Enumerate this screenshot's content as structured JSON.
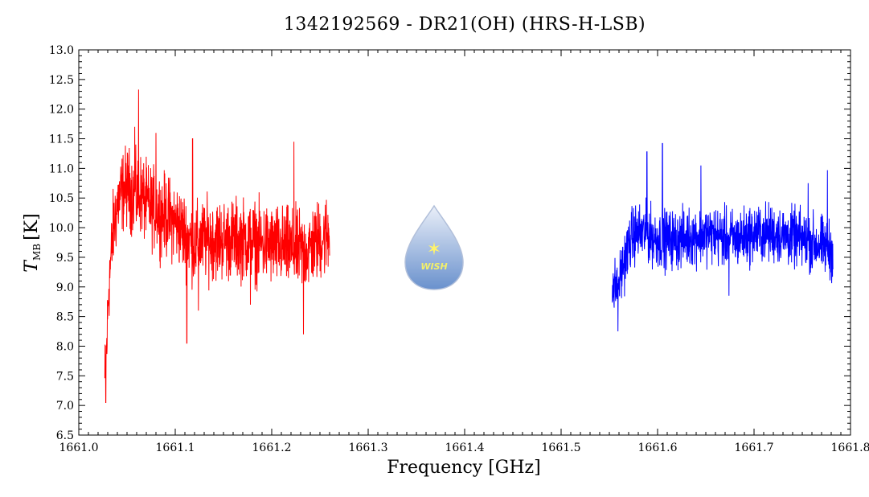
{
  "chart_data": {
    "type": "line",
    "title": "1342192569 - DR21(OH) (HRS-H-LSB)",
    "xlabel": "Frequency [GHz]",
    "ylabel_main": "T",
    "ylabel_sub": "MB",
    "ylabel_unit": "[K]",
    "xlim": [
      1661.0,
      1661.8
    ],
    "ylim": [
      6.5,
      13.0
    ],
    "xticks": [
      "1661.0",
      "1661.1",
      "1661.2",
      "1661.3",
      "1661.4",
      "1661.5",
      "1661.6",
      "1661.7",
      "1661.8"
    ],
    "yticks": [
      "6.5",
      "7.0",
      "7.5",
      "8.0",
      "8.5",
      "9.0",
      "9.5",
      "10.0",
      "10.5",
      "11.0",
      "11.5",
      "12.0",
      "12.5",
      "13.0"
    ],
    "series": [
      {
        "color": "#ff0000",
        "x_start": 1661.027,
        "x_end": 1661.26,
        "x": [
          1661.027,
          1661.029,
          1661.031,
          1661.033,
          1661.036,
          1661.04,
          1661.045,
          1661.05,
          1661.055,
          1661.06,
          1661.063,
          1661.07,
          1661.08,
          1661.09,
          1661.1,
          1661.11,
          1661.12,
          1661.13,
          1661.15,
          1661.17,
          1661.2,
          1661.23,
          1661.235,
          1661.25,
          1661.26
        ],
        "y": [
          7.4,
          8.0,
          9.0,
          9.4,
          10.0,
          10.4,
          10.6,
          10.7,
          10.6,
          10.5,
          10.6,
          10.4,
          10.3,
          10.2,
          10.1,
          9.9,
          9.7,
          9.8,
          9.8,
          9.8,
          9.7,
          9.6,
          9.6,
          9.8,
          9.9
        ],
        "noise_amplitude": 0.55,
        "spikes": [
          {
            "x": 1661.028,
            "y": 7.05
          },
          {
            "x": 1661.062,
            "y": 12.33
          },
          {
            "x": 1661.058,
            "y": 11.7
          },
          {
            "x": 1661.08,
            "y": 11.6
          },
          {
            "x": 1661.112,
            "y": 8.05
          },
          {
            "x": 1661.124,
            "y": 8.6
          },
          {
            "x": 1661.233,
            "y": 8.2
          },
          {
            "x": 1661.178,
            "y": 8.7
          },
          {
            "x": 1661.223,
            "y": 11.45
          },
          {
            "x": 1661.118,
            "y": 11.5
          }
        ]
      },
      {
        "color": "#0000ff",
        "x_start": 1661.553,
        "x_end": 1661.782,
        "x": [
          1661.553,
          1661.556,
          1661.56,
          1661.565,
          1661.57,
          1661.575,
          1661.58,
          1661.59,
          1661.6,
          1661.62,
          1661.65,
          1661.68,
          1661.7,
          1661.72,
          1661.75,
          1661.77,
          1661.782
        ],
        "y": [
          9.1,
          9.0,
          9.1,
          9.4,
          9.7,
          9.9,
          9.9,
          9.9,
          9.8,
          9.8,
          9.9,
          9.8,
          9.9,
          9.9,
          9.8,
          9.7,
          9.6
        ],
        "noise_amplitude": 0.4,
        "spikes": [
          {
            "x": 1661.559,
            "y": 8.25
          },
          {
            "x": 1661.605,
            "y": 11.42
          },
          {
            "x": 1661.589,
            "y": 11.28
          },
          {
            "x": 1661.674,
            "y": 8.85
          },
          {
            "x": 1661.645,
            "y": 11.05
          },
          {
            "x": 1661.776,
            "y": 10.97
          },
          {
            "x": 1661.756,
            "y": 10.75
          },
          {
            "x": 1661.555,
            "y": 8.65
          }
        ]
      }
    ],
    "grid": false
  },
  "watermark": {
    "name": "wish-logo",
    "text": "WISH",
    "colors": {
      "drop_top": "#e8eef8",
      "drop_bottom": "#5a86c8",
      "star": "#fff36a"
    }
  }
}
